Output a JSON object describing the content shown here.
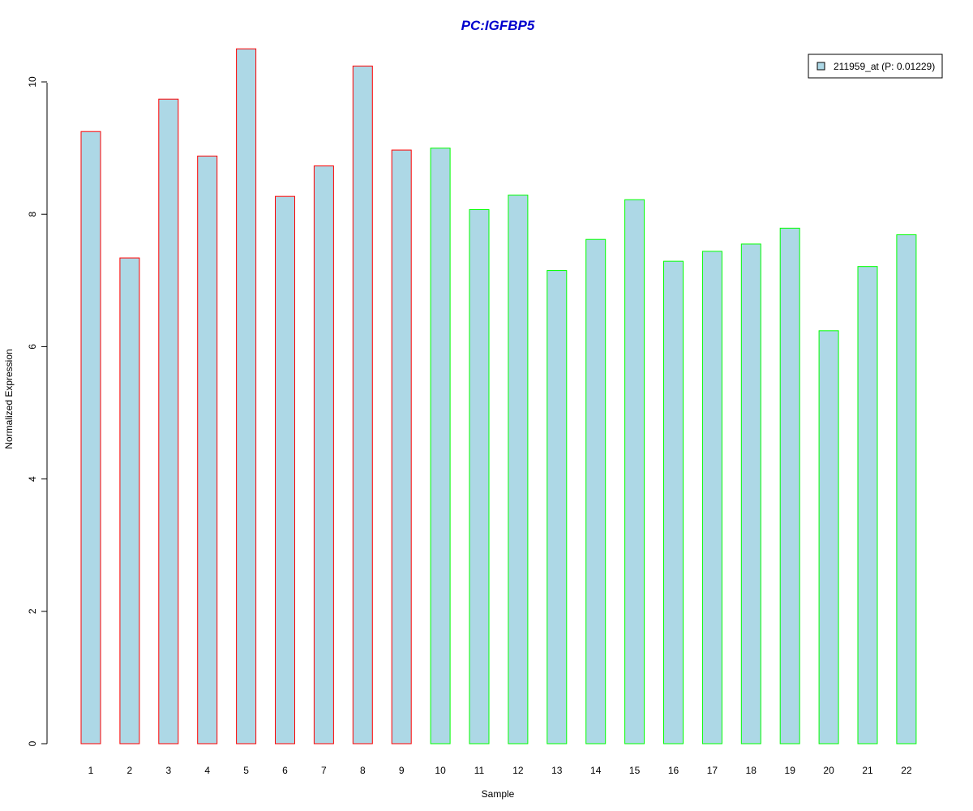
{
  "chart_data": {
    "type": "bar",
    "title": "PC:IGFBP5",
    "xlabel": "Sample",
    "ylabel": "Normalized Expression",
    "categories": [
      "1",
      "2",
      "3",
      "4",
      "5",
      "6",
      "7",
      "8",
      "9",
      "10",
      "11",
      "12",
      "13",
      "14",
      "15",
      "16",
      "17",
      "18",
      "19",
      "20",
      "21",
      "22"
    ],
    "values": [
      9.25,
      7.34,
      9.74,
      8.88,
      10.5,
      8.27,
      8.73,
      10.24,
      8.97,
      9.0,
      8.07,
      8.29,
      7.15,
      7.62,
      8.22,
      7.29,
      7.44,
      7.55,
      7.79,
      6.24,
      7.21,
      7.69
    ],
    "groups": [
      "red",
      "red",
      "red",
      "red",
      "red",
      "red",
      "red",
      "red",
      "red",
      "green",
      "green",
      "green",
      "green",
      "green",
      "green",
      "green",
      "green",
      "green",
      "green",
      "green",
      "green",
      "green"
    ],
    "ylim": [
      0,
      10.5
    ],
    "yticks": [
      0,
      2,
      4,
      6,
      8,
      10
    ],
    "grid": false,
    "legend": {
      "position": "top-right",
      "entries": [
        {
          "label": "211959_at (P: 0.01229)",
          "color": "#add8e6"
        }
      ]
    },
    "colors": {
      "bar_fill": "#add8e6",
      "border_group_1": "#ff0000",
      "border_group_2": "#00ff00",
      "title": "#0000cd"
    }
  }
}
